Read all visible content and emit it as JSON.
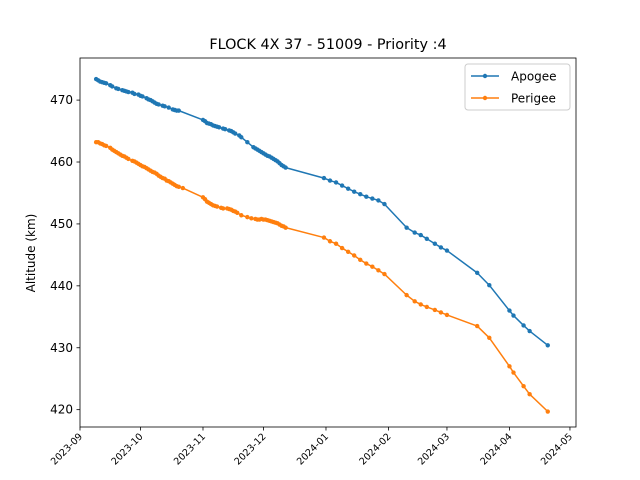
{
  "chart_data": {
    "type": "line",
    "title": "FLOCK 4X 37 - 51009 - Priority :4",
    "xlabel": "",
    "ylabel": "Altitude (km)",
    "x_type": "date",
    "xlim": [
      "2023-09-01",
      "2024-05-04"
    ],
    "ylim": [
      417.2,
      476.8
    ],
    "x_ticks": [
      "2023-09-01",
      "2023-10-01",
      "2023-11-01",
      "2023-12-01",
      "2024-01-01",
      "2024-02-01",
      "2024-03-01",
      "2024-04-01",
      "2024-05-01"
    ],
    "x_tick_labels": [
      "2023-09",
      "2023-10",
      "2023-11",
      "2023-12",
      "2024-01",
      "2024-02",
      "2024-03",
      "2024-04",
      "2024-05"
    ],
    "y_ticks": [
      420,
      430,
      440,
      450,
      460,
      470
    ],
    "grid": false,
    "legend_position": "top-right",
    "series": [
      {
        "name": "Apogee",
        "color": "#1f77b4",
        "points": [
          [
            "2023-09-09",
            473.4
          ],
          [
            "2023-09-10",
            473.2
          ],
          [
            "2023-09-11",
            473.0
          ],
          [
            "2023-09-12",
            472.9
          ],
          [
            "2023-09-13",
            472.8
          ],
          [
            "2023-09-14",
            472.7
          ],
          [
            "2023-09-16",
            472.4
          ],
          [
            "2023-09-17",
            472.2
          ],
          [
            "2023-09-19",
            471.9
          ],
          [
            "2023-09-20",
            471.8
          ],
          [
            "2023-09-22",
            471.6
          ],
          [
            "2023-09-23",
            471.5
          ],
          [
            "2023-09-24",
            471.4
          ],
          [
            "2023-09-25",
            471.3
          ],
          [
            "2023-09-27",
            471.2
          ],
          [
            "2023-09-28",
            471.0
          ],
          [
            "2023-09-30",
            470.9
          ],
          [
            "2023-10-01",
            470.7
          ],
          [
            "2023-10-02",
            470.6
          ],
          [
            "2023-10-04",
            470.3
          ],
          [
            "2023-10-05",
            470.1
          ],
          [
            "2023-10-06",
            470.0
          ],
          [
            "2023-10-07",
            469.8
          ],
          [
            "2023-10-08",
            469.6
          ],
          [
            "2023-10-09",
            469.4
          ],
          [
            "2023-10-10",
            469.3
          ],
          [
            "2023-10-12",
            469.1
          ],
          [
            "2023-10-13",
            469.0
          ],
          [
            "2023-10-15",
            468.8
          ],
          [
            "2023-10-17",
            468.5
          ],
          [
            "2023-10-18",
            468.4
          ],
          [
            "2023-10-19",
            468.3
          ],
          [
            "2023-10-20",
            468.3
          ],
          [
            "2023-11-01",
            466.8
          ],
          [
            "2023-11-02",
            466.6
          ],
          [
            "2023-11-03",
            466.3
          ],
          [
            "2023-11-04",
            466.2
          ],
          [
            "2023-11-05",
            466.1
          ],
          [
            "2023-11-06",
            465.9
          ],
          [
            "2023-11-07",
            465.8
          ],
          [
            "2023-11-08",
            465.7
          ],
          [
            "2023-11-09",
            465.6
          ],
          [
            "2023-11-11",
            465.4
          ],
          [
            "2023-11-12",
            465.3
          ],
          [
            "2023-11-14",
            465.1
          ],
          [
            "2023-11-15",
            465.0
          ],
          [
            "2023-11-16",
            464.8
          ],
          [
            "2023-11-17",
            464.6
          ],
          [
            "2023-11-19",
            464.3
          ],
          [
            "2023-11-20",
            464.0
          ],
          [
            "2023-11-23",
            463.2
          ],
          [
            "2023-11-26",
            462.4
          ],
          [
            "2023-11-27",
            462.2
          ],
          [
            "2023-11-28",
            462.0
          ],
          [
            "2023-11-29",
            461.8
          ],
          [
            "2023-11-30",
            461.6
          ],
          [
            "2023-12-01",
            461.4
          ],
          [
            "2023-12-02",
            461.2
          ],
          [
            "2023-12-03",
            461.0
          ],
          [
            "2023-12-04",
            460.9
          ],
          [
            "2023-12-05",
            460.7
          ],
          [
            "2023-12-06",
            460.5
          ],
          [
            "2023-12-07",
            460.3
          ],
          [
            "2023-12-08",
            460.1
          ],
          [
            "2023-12-09",
            459.8
          ],
          [
            "2023-12-10",
            459.5
          ],
          [
            "2023-12-11",
            459.3
          ],
          [
            "2023-12-12",
            459.1
          ],
          [
            "2023-12-31",
            457.4
          ],
          [
            "2024-01-03",
            457.0
          ],
          [
            "2024-01-06",
            456.7
          ],
          [
            "2024-01-09",
            456.2
          ],
          [
            "2024-01-12",
            455.7
          ],
          [
            "2024-01-15",
            455.2
          ],
          [
            "2024-01-18",
            454.8
          ],
          [
            "2024-01-21",
            454.4
          ],
          [
            "2024-01-24",
            454.1
          ],
          [
            "2024-01-27",
            453.8
          ],
          [
            "2024-01-30",
            453.2
          ],
          [
            "2024-02-10",
            449.4
          ],
          [
            "2024-02-14",
            448.6
          ],
          [
            "2024-02-17",
            448.2
          ],
          [
            "2024-02-20",
            447.6
          ],
          [
            "2024-02-24",
            446.8
          ],
          [
            "2024-02-27",
            446.2
          ],
          [
            "2024-03-01",
            445.7
          ],
          [
            "2024-03-16",
            442.1
          ],
          [
            "2024-03-22",
            440.1
          ],
          [
            "2024-04-01",
            436.0
          ],
          [
            "2024-04-03",
            435.2
          ],
          [
            "2024-04-08",
            433.6
          ],
          [
            "2024-04-11",
            432.7
          ],
          [
            "2024-04-20",
            430.4
          ]
        ]
      },
      {
        "name": "Perigee",
        "color": "#ff7f0e",
        "points": [
          [
            "2023-09-09",
            463.2
          ],
          [
            "2023-09-10",
            463.2
          ],
          [
            "2023-09-11",
            463.0
          ],
          [
            "2023-09-12",
            462.9
          ],
          [
            "2023-09-13",
            462.7
          ],
          [
            "2023-09-14",
            462.6
          ],
          [
            "2023-09-16",
            462.3
          ],
          [
            "2023-09-17",
            462.0
          ],
          [
            "2023-09-18",
            461.8
          ],
          [
            "2023-09-19",
            461.6
          ],
          [
            "2023-09-20",
            461.4
          ],
          [
            "2023-09-21",
            461.2
          ],
          [
            "2023-09-22",
            461.0
          ],
          [
            "2023-09-23",
            460.9
          ],
          [
            "2023-09-24",
            460.7
          ],
          [
            "2023-09-25",
            460.5
          ],
          [
            "2023-09-27",
            460.2
          ],
          [
            "2023-09-28",
            460.1
          ],
          [
            "2023-09-29",
            459.9
          ],
          [
            "2023-09-30",
            459.7
          ],
          [
            "2023-10-01",
            459.5
          ],
          [
            "2023-10-02",
            459.3
          ],
          [
            "2023-10-03",
            459.2
          ],
          [
            "2023-10-04",
            459.0
          ],
          [
            "2023-10-05",
            458.8
          ],
          [
            "2023-10-06",
            458.6
          ],
          [
            "2023-10-07",
            458.4
          ],
          [
            "2023-10-08",
            458.3
          ],
          [
            "2023-10-09",
            458.1
          ],
          [
            "2023-10-10",
            457.8
          ],
          [
            "2023-10-11",
            457.6
          ],
          [
            "2023-10-12",
            457.4
          ],
          [
            "2023-10-13",
            457.3
          ],
          [
            "2023-10-14",
            457.0
          ],
          [
            "2023-10-15",
            456.9
          ],
          [
            "2023-10-16",
            456.7
          ],
          [
            "2023-10-17",
            456.5
          ],
          [
            "2023-10-18",
            456.3
          ],
          [
            "2023-10-19",
            456.1
          ],
          [
            "2023-10-20",
            456.0
          ],
          [
            "2023-10-22",
            455.8
          ],
          [
            "2023-11-01",
            454.3
          ],
          [
            "2023-11-02",
            454.0
          ],
          [
            "2023-11-03",
            453.6
          ],
          [
            "2023-11-04",
            453.4
          ],
          [
            "2023-11-05",
            453.2
          ],
          [
            "2023-11-06",
            453.0
          ],
          [
            "2023-11-07",
            452.9
          ],
          [
            "2023-11-08",
            452.8
          ],
          [
            "2023-11-10",
            452.6
          ],
          [
            "2023-11-11",
            452.5
          ],
          [
            "2023-11-13",
            452.5
          ],
          [
            "2023-11-14",
            452.4
          ],
          [
            "2023-11-15",
            452.3
          ],
          [
            "2023-11-16",
            452.1
          ],
          [
            "2023-11-17",
            452.0
          ],
          [
            "2023-11-18",
            451.8
          ],
          [
            "2023-11-20",
            451.4
          ],
          [
            "2023-11-23",
            451.1
          ],
          [
            "2023-11-25",
            450.9
          ],
          [
            "2023-11-27",
            450.8
          ],
          [
            "2023-11-28",
            450.7
          ],
          [
            "2023-11-29",
            450.7
          ],
          [
            "2023-11-30",
            450.8
          ],
          [
            "2023-12-01",
            450.7
          ],
          [
            "2023-12-02",
            450.7
          ],
          [
            "2023-12-03",
            450.6
          ],
          [
            "2023-12-04",
            450.5
          ],
          [
            "2023-12-05",
            450.4
          ],
          [
            "2023-12-06",
            450.3
          ],
          [
            "2023-12-07",
            450.2
          ],
          [
            "2023-12-08",
            450.1
          ],
          [
            "2023-12-09",
            449.9
          ],
          [
            "2023-12-10",
            449.7
          ],
          [
            "2023-12-11",
            449.6
          ],
          [
            "2023-12-12",
            449.4
          ],
          [
            "2023-12-31",
            447.8
          ],
          [
            "2024-01-03",
            447.2
          ],
          [
            "2024-01-06",
            446.8
          ],
          [
            "2024-01-09",
            446.1
          ],
          [
            "2024-01-12",
            445.5
          ],
          [
            "2024-01-15",
            444.9
          ],
          [
            "2024-01-18",
            444.2
          ],
          [
            "2024-01-21",
            443.6
          ],
          [
            "2024-01-24",
            443.1
          ],
          [
            "2024-01-27",
            442.5
          ],
          [
            "2024-01-30",
            441.9
          ],
          [
            "2024-02-10",
            438.5
          ],
          [
            "2024-02-14",
            437.5
          ],
          [
            "2024-02-17",
            437.0
          ],
          [
            "2024-02-20",
            436.6
          ],
          [
            "2024-02-24",
            436.1
          ],
          [
            "2024-02-27",
            435.7
          ],
          [
            "2024-03-01",
            435.3
          ],
          [
            "2024-03-16",
            433.5
          ],
          [
            "2024-03-22",
            431.6
          ],
          [
            "2024-04-01",
            427.0
          ],
          [
            "2024-04-03",
            426.0
          ],
          [
            "2024-04-08",
            423.8
          ],
          [
            "2024-04-11",
            422.5
          ],
          [
            "2024-04-20",
            419.7
          ]
        ]
      }
    ]
  }
}
